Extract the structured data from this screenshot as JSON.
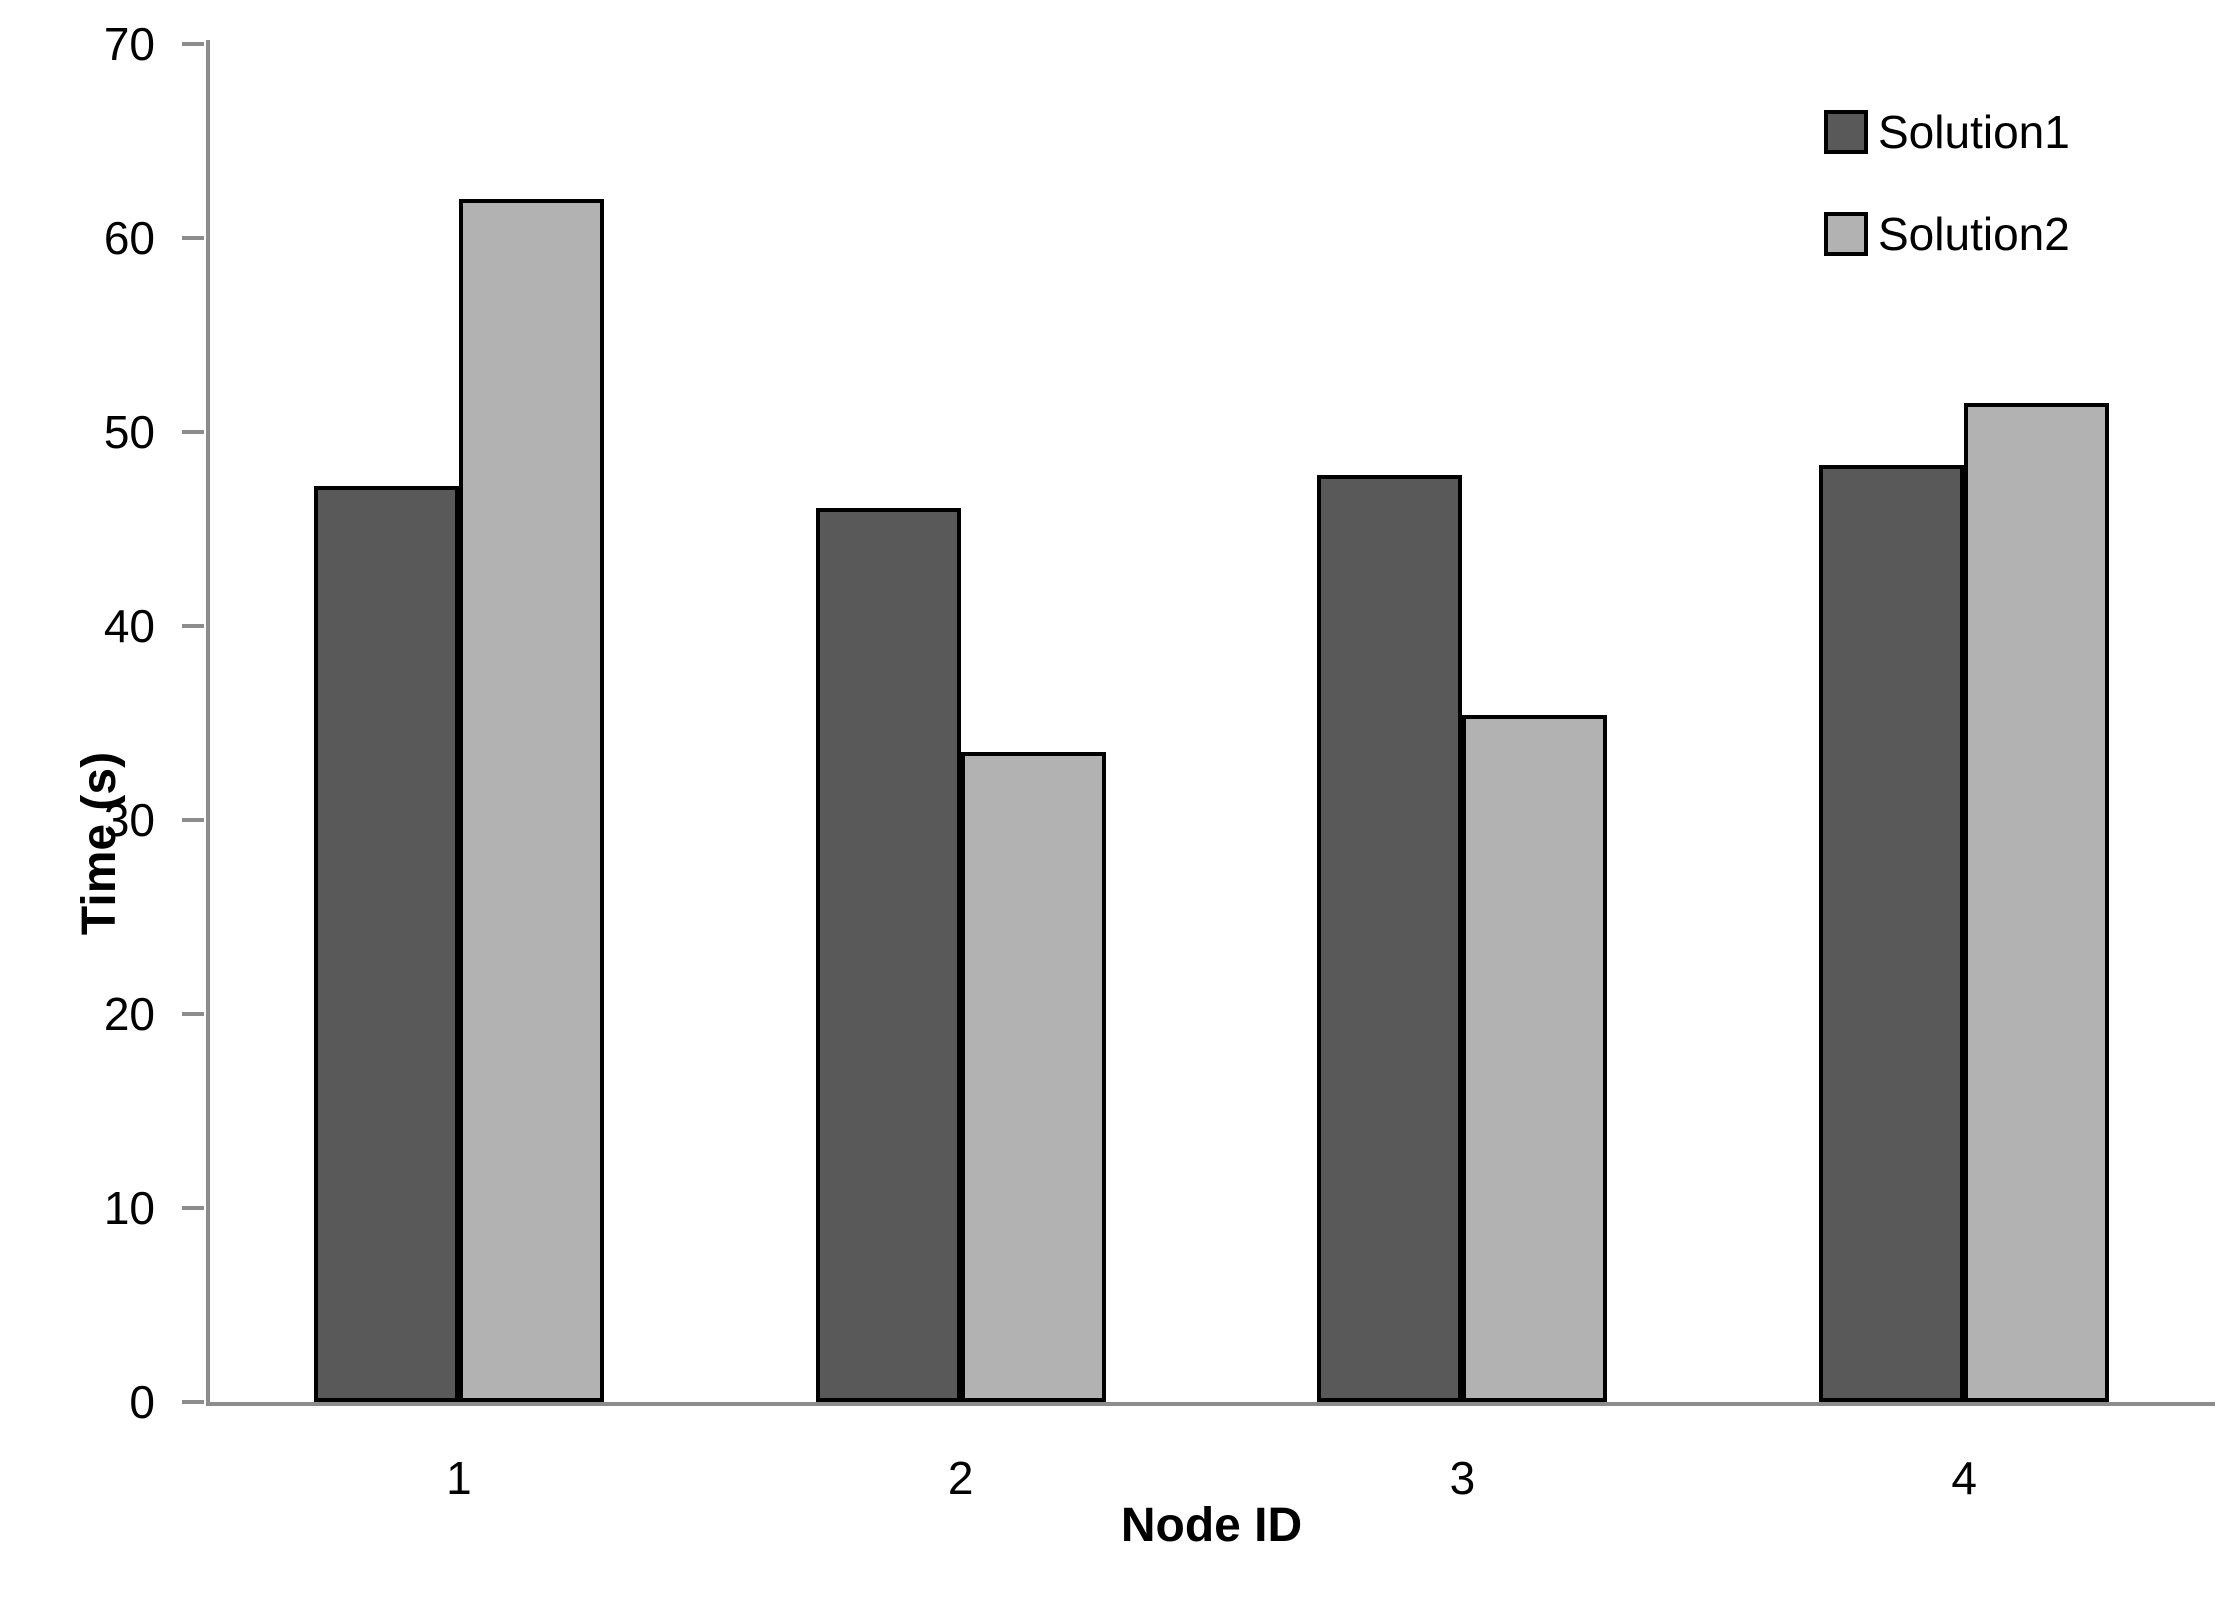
{
  "chart_data": {
    "type": "bar",
    "title": "",
    "categories": [
      "1",
      "2",
      "3",
      "4"
    ],
    "series": [
      {
        "name": "Solution1",
        "color": "#595959",
        "values": [
          47.2,
          46.1,
          47.8,
          48.3
        ]
      },
      {
        "name": "Solution2",
        "color": "#b2b2b2",
        "values": [
          62.0,
          33.5,
          35.4,
          51.5
        ]
      }
    ],
    "xlabel": "Node ID",
    "ylabel": "Time (s)",
    "ylim": [
      0,
      70
    ],
    "yticks": [
      0,
      10,
      20,
      30,
      40,
      50,
      60,
      70
    ],
    "grid": false,
    "legend_position": "top-right",
    "bar_border_color": "#000000",
    "axis_color": "#8c8c8c",
    "background_color": "#ffffff"
  }
}
